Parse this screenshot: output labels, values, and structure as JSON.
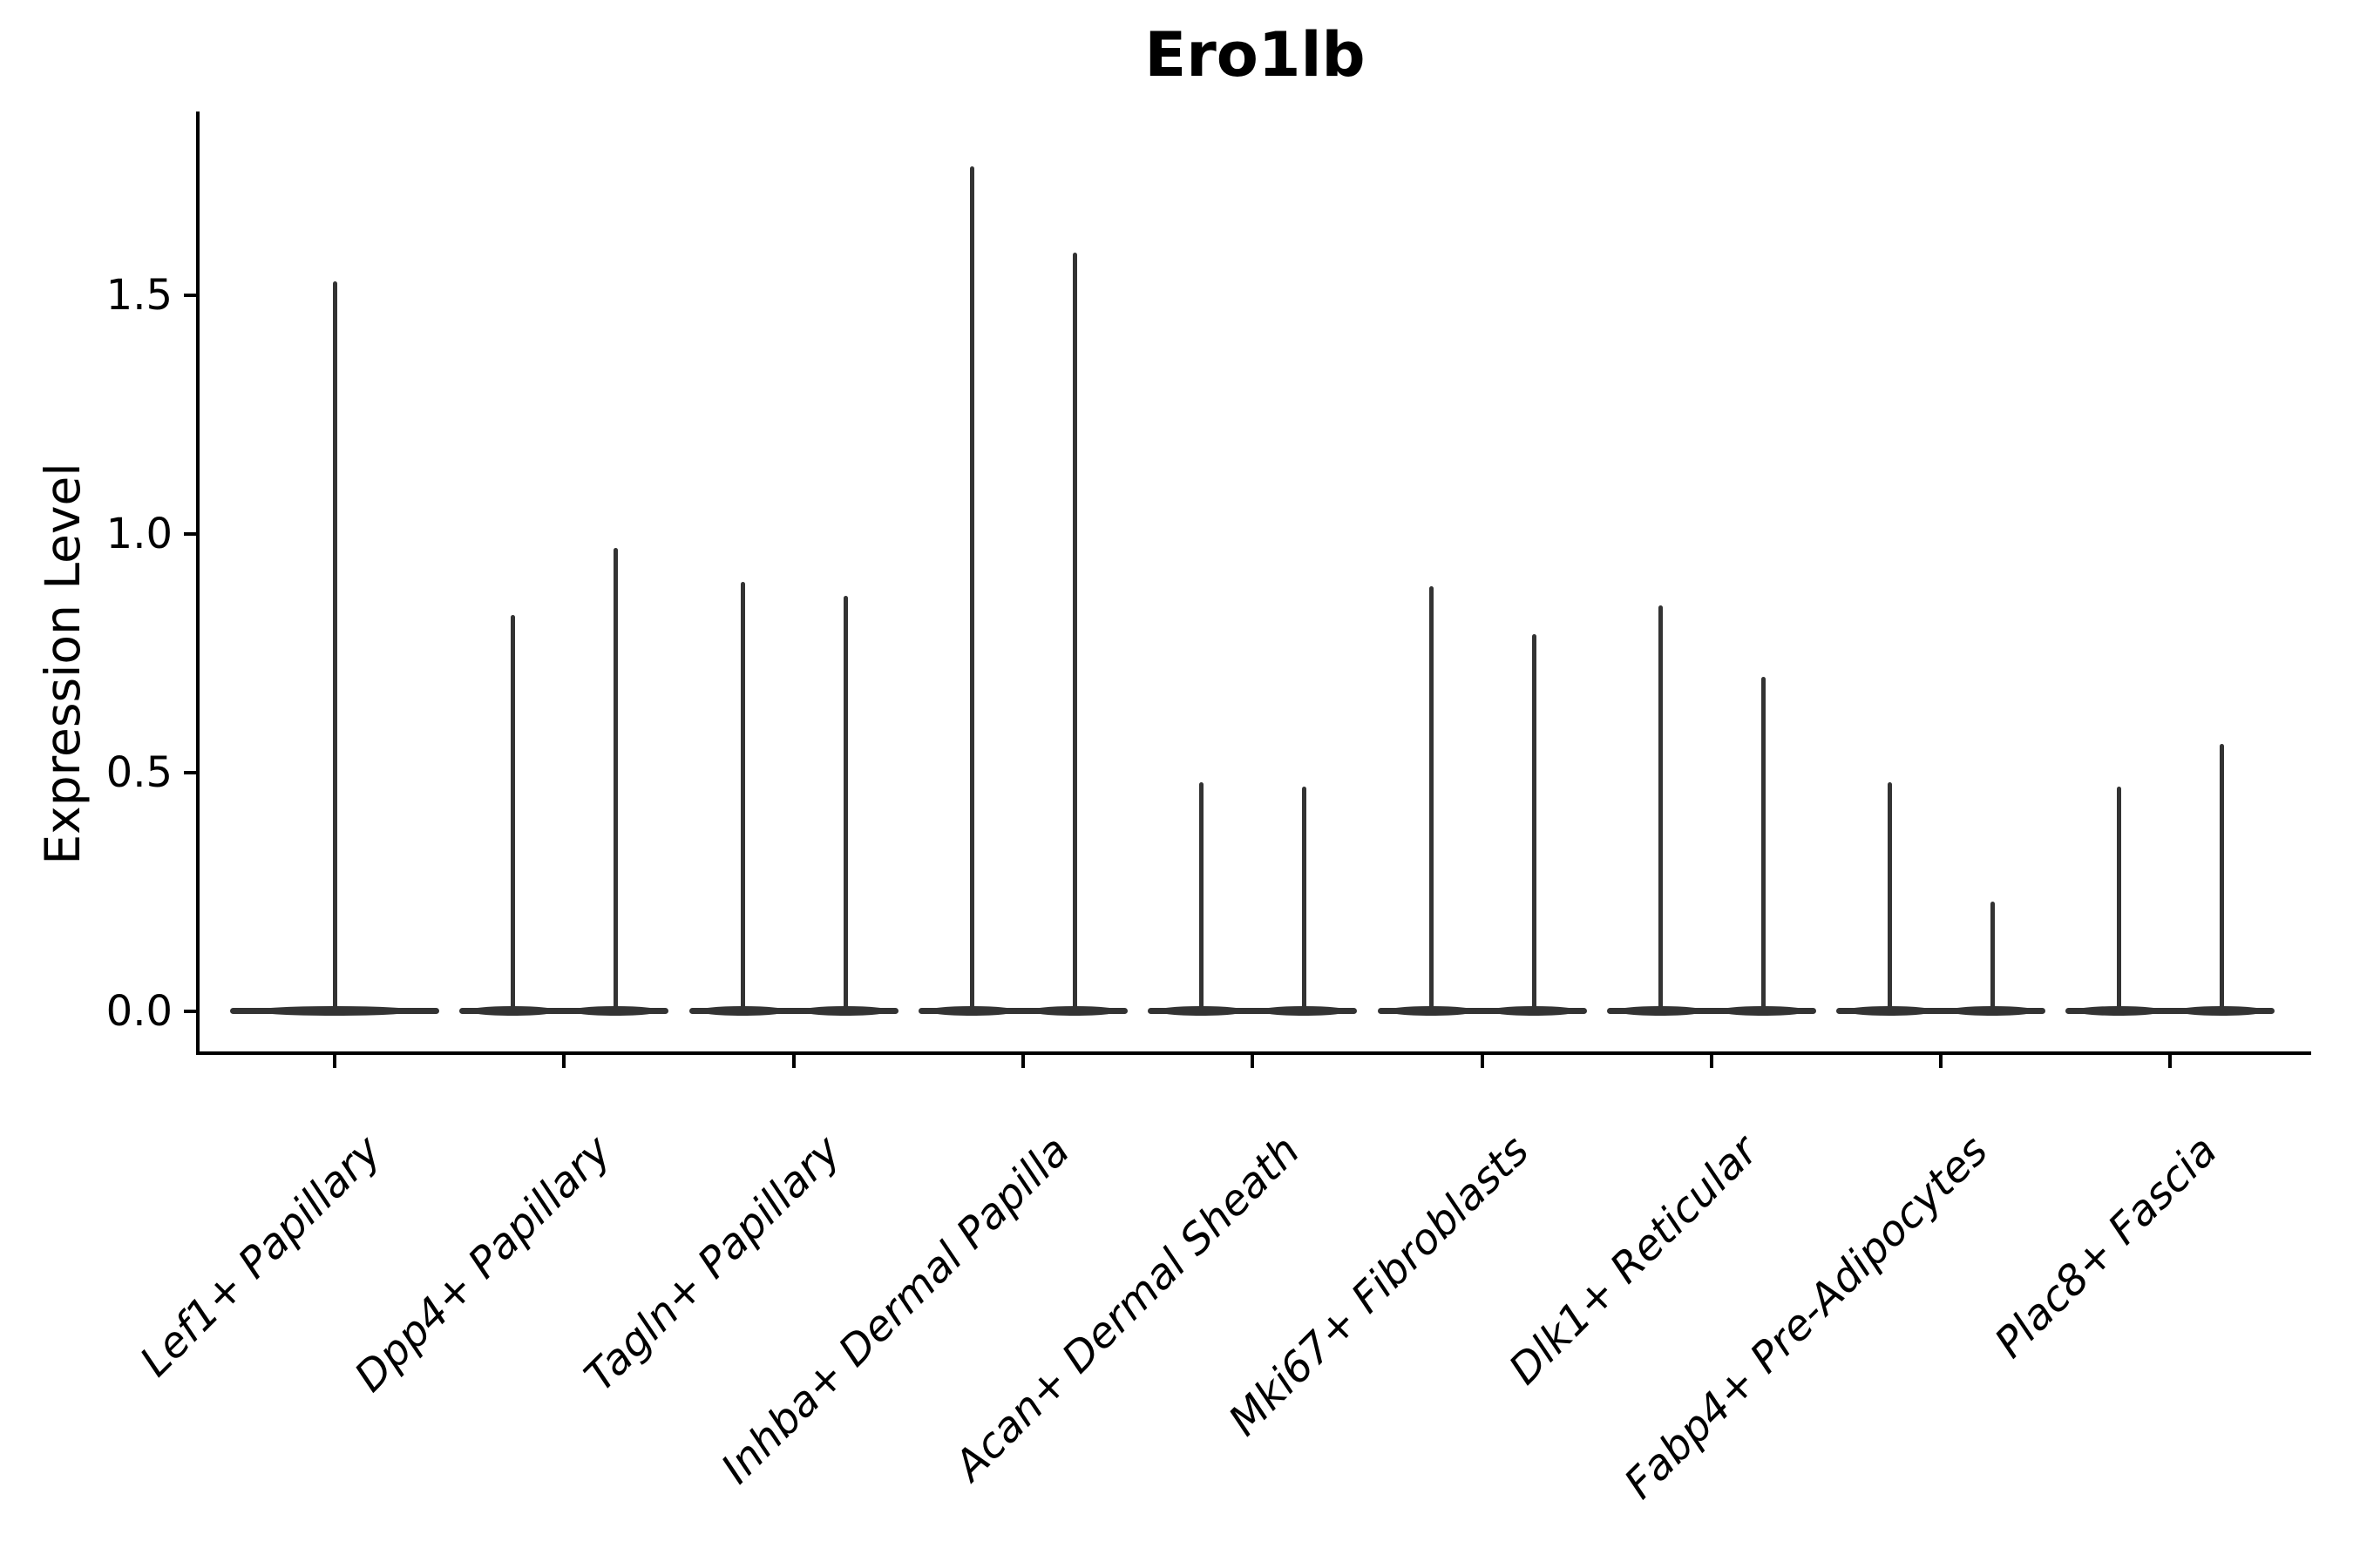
{
  "title": "Ero1lb",
  "ylabel": "Expression Level",
  "colors": {
    "violin": "#333333",
    "axis": "#000000",
    "text": "#000000",
    "background": "#ffffff"
  },
  "chart_data": {
    "type": "violin",
    "title": "Ero1lb",
    "xlabel": "",
    "ylabel": "Expression Level",
    "ytick_labels": [
      "0.0",
      "0.5",
      "1.0",
      "1.5"
    ],
    "ytick_values": [
      0,
      0.5,
      1.0,
      1.5
    ],
    "ylim": [
      -0.09,
      1.88
    ],
    "grid": "off",
    "legend": "none",
    "categories": [
      "Lef1+ Papillary",
      "Dpp4+ Papillary",
      "Tagln+ Papillary",
      "Inhba+ Dermal Papilla",
      "Acan+ Dermal Sheath",
      "Mki67+ Fibroblasts",
      "Dlk1+ Reticular",
      "Fabp4+ Pre-Adipocytes",
      "Plac8+ Fascia"
    ],
    "groups": [
      {
        "category": "Lef1+ Papillary",
        "violin_maxima": [
          1.53
        ]
      },
      {
        "category": "Dpp4+ Papillary",
        "violin_maxima": [
          0.83,
          0.97
        ]
      },
      {
        "category": "Tagln+ Papillary",
        "violin_maxima": [
          0.9,
          0.87
        ]
      },
      {
        "category": "Inhba+ Dermal Papilla",
        "violin_maxima": [
          1.77,
          1.59
        ]
      },
      {
        "category": "Acan+ Dermal Sheath",
        "violin_maxima": [
          0.48,
          0.47
        ]
      },
      {
        "category": "Mki67+ Fibroblasts",
        "violin_maxima": [
          0.89,
          0.79
        ]
      },
      {
        "category": "Dlk1+ Reticular",
        "violin_maxima": [
          0.85,
          0.7
        ]
      },
      {
        "category": "Fabp4+ Pre-Adipocytes",
        "violin_maxima": [
          0.48,
          0.23
        ]
      },
      {
        "category": "Plac8+ Fascia",
        "violin_maxima": [
          0.47,
          0.56
        ]
      }
    ]
  }
}
